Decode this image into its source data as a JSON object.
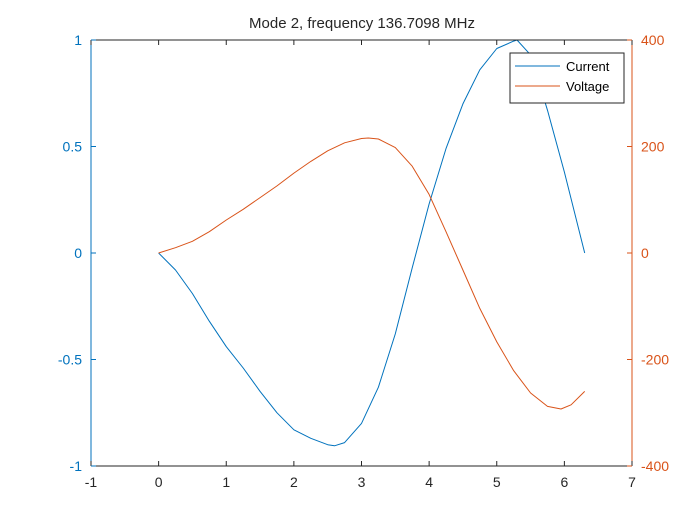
{
  "chart_data": {
    "type": "line",
    "title": "Mode 2, frequency 136.7098 MHz",
    "xlabel": "",
    "ylabel_left": "",
    "ylabel_right": "",
    "xlim": [
      -1,
      7
    ],
    "ylim_left": [
      -1,
      1
    ],
    "ylim_right": [
      -400,
      400
    ],
    "x_ticks": [
      "-1",
      "0",
      "1",
      "2",
      "3",
      "4",
      "5",
      "6",
      "7"
    ],
    "y_left_ticks": [
      "-1",
      "-0.5",
      "0",
      "0.5",
      "1"
    ],
    "y_right_ticks": [
      "-400",
      "-200",
      "0",
      "200",
      "400"
    ],
    "grid": false,
    "legend_position": "top-right",
    "colors": {
      "left_axis": "#0072BD",
      "right_axis": "#D95319",
      "axis_box": "#262626"
    },
    "series": [
      {
        "name": "Current",
        "axis": "left",
        "color": "#0072BD",
        "x": [
          0,
          0.25,
          0.5,
          0.75,
          1.0,
          1.25,
          1.5,
          1.75,
          2.0,
          2.25,
          2.5,
          2.6,
          2.75,
          3.0,
          3.25,
          3.5,
          3.75,
          4.0,
          4.25,
          4.5,
          4.75,
          5.0,
          5.25,
          5.3,
          5.5,
          5.75,
          6.0,
          6.3
        ],
        "y": [
          0,
          -0.08,
          -0.19,
          -0.32,
          -0.44,
          -0.54,
          -0.65,
          -0.75,
          -0.83,
          -0.87,
          -0.9,
          -0.905,
          -0.89,
          -0.8,
          -0.63,
          -0.38,
          -0.07,
          0.23,
          0.49,
          0.7,
          0.86,
          0.96,
          0.995,
          1.0,
          0.93,
          0.67,
          0.38,
          0.0
        ]
      },
      {
        "name": "Voltage",
        "axis": "right",
        "color": "#D95319",
        "x": [
          0,
          0.25,
          0.5,
          0.75,
          1.0,
          1.25,
          1.5,
          1.75,
          2.0,
          2.25,
          2.5,
          2.75,
          3.0,
          3.1,
          3.25,
          3.5,
          3.75,
          4.0,
          4.25,
          4.5,
          4.75,
          5.0,
          5.25,
          5.5,
          5.75,
          5.95,
          6.1,
          6.3
        ],
        "y": [
          0,
          10,
          22,
          40,
          62,
          82,
          104,
          126,
          150,
          172,
          192,
          207,
          215,
          216,
          214,
          198,
          163,
          110,
          40,
          -32,
          -104,
          -167,
          -221,
          -263,
          -288,
          -293,
          -285,
          -260
        ]
      }
    ]
  }
}
